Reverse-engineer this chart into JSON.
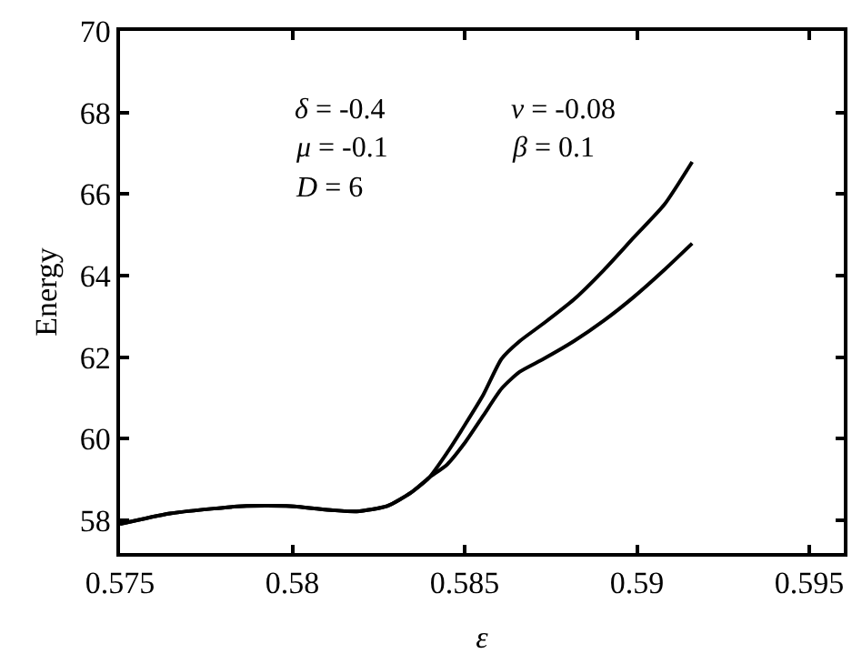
{
  "chart_data": {
    "type": "line",
    "xlabel": "ε",
    "ylabel": "Energy",
    "x": [
      0.575,
      0.57645,
      0.57855,
      0.57995,
      0.58117,
      0.58187,
      0.58275,
      0.58344,
      0.58397,
      0.58449,
      0.58502,
      0.58554,
      0.58607,
      0.58659,
      0.58729,
      0.58816,
      0.58904,
      0.58991,
      0.59079,
      0.5916
    ],
    "series": [
      {
        "color": "#000000",
        "values": [
          57.91,
          58.17,
          58.35,
          58.35,
          58.25,
          58.22,
          58.35,
          58.68,
          59.05,
          59.66,
          60.36,
          61.08,
          61.96,
          62.39,
          62.83,
          63.41,
          64.14,
          64.94,
          65.74,
          66.79
        ]
      },
      {
        "color": "#000000",
        "values": [
          57.91,
          58.17,
          58.35,
          58.35,
          58.25,
          58.22,
          58.35,
          58.68,
          59.05,
          59.37,
          59.92,
          60.57,
          61.23,
          61.64,
          61.96,
          62.39,
          62.9,
          63.48,
          64.14,
          64.79
        ]
      }
    ],
    "xlim": [
      0.575,
      0.596
    ],
    "ylim": [
      57.2,
      70
    ],
    "xticks": [
      0.575,
      0.58,
      0.585,
      0.59,
      0.595
    ],
    "yticks": [
      58,
      60,
      62,
      64,
      66,
      68,
      70
    ],
    "annotations": [
      "δ = -0.4",
      "ν = -0.08",
      "μ = -0.1",
      "β = 0.1",
      "D = 6"
    ],
    "marker": "none",
    "line_style": "solid"
  }
}
